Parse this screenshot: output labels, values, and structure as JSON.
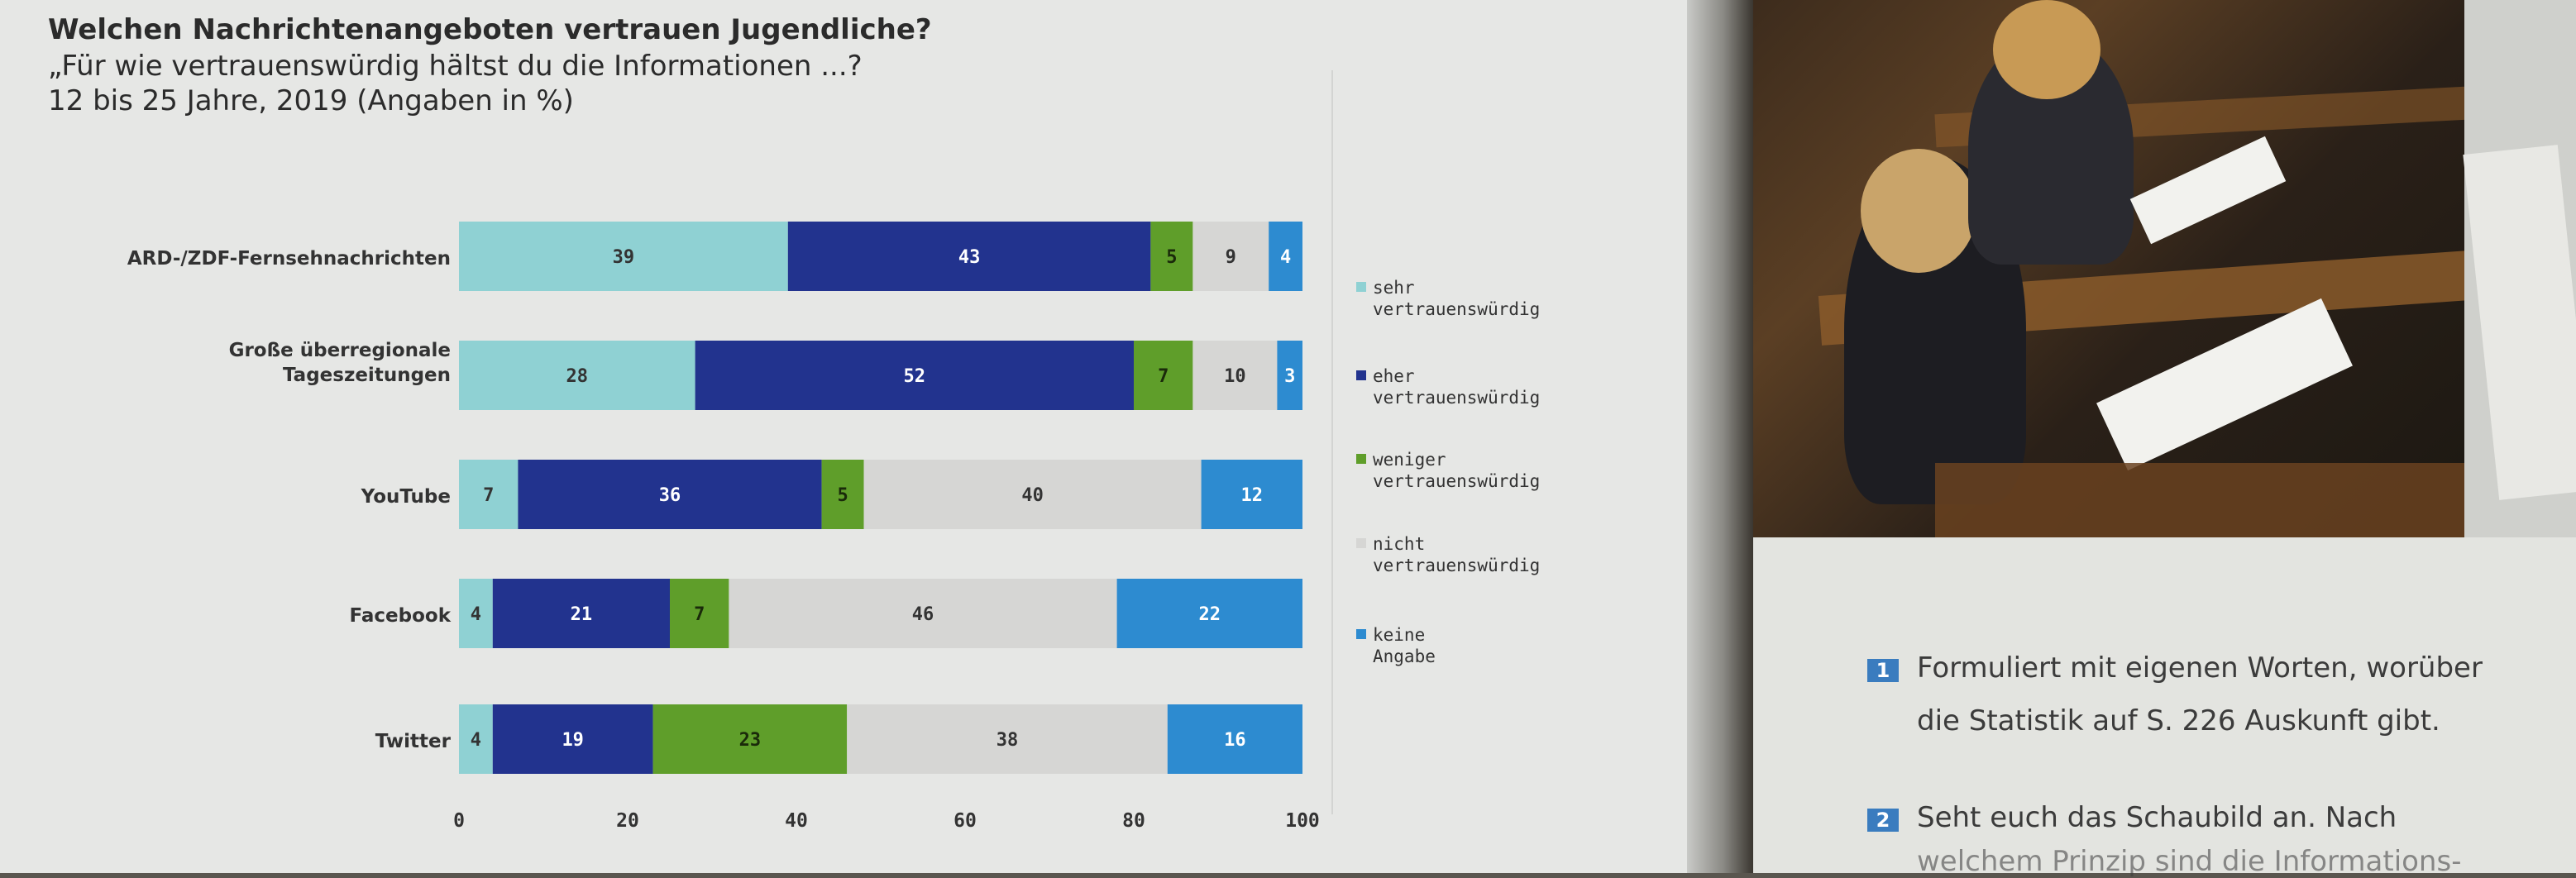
{
  "chart_data": {
    "type": "bar",
    "stacked": true,
    "orientation": "horizontal",
    "title": "Welchen Nachrichtenangeboten vertrauen Jugendliche?",
    "subtitle": "„Für wie vertrauenswürdig hältst du die Informationen ...?",
    "note": "12 bis 25 Jahre, 2019 (Angaben in %)",
    "categories": [
      "ARD-/ZDF-Fernsehnachrichten",
      "Große überregionale Tageszeitungen",
      "YouTube",
      "Facebook",
      "Twitter"
    ],
    "series": [
      {
        "name": "sehr vertrauenswürdig",
        "color": "#8fd1d3",
        "values": [
          39,
          28,
          7,
          4,
          4
        ]
      },
      {
        "name": "eher vertrauenswürdig",
        "color": "#22338e",
        "values": [
          43,
          52,
          36,
          21,
          19
        ]
      },
      {
        "name": "weniger vertrauenswürdig",
        "color": "#5f9e2a",
        "values": [
          5,
          7,
          5,
          7,
          23
        ]
      },
      {
        "name": "nicht vertrauenswürdig",
        "color": "#d6d6d4",
        "values": [
          9,
          10,
          40,
          46,
          38
        ]
      },
      {
        "name": "keine Angabe",
        "color": "#2d8bd0",
        "values": [
          4,
          3,
          12,
          22,
          16
        ]
      }
    ],
    "xlim": [
      0,
      100
    ],
    "xticks": [
      0,
      20,
      40,
      60,
      80,
      100
    ],
    "legend": "right"
  },
  "tasks": [
    {
      "num": "1",
      "line1": "Formuliert mit eigenen Worten, worüber",
      "line2": "die Statistik auf S. 226 Auskunft gibt."
    },
    {
      "num": "2",
      "line1": "Seht euch das Schaubild an. Nach",
      "line2": "welchem Prinzip sind die Informations-"
    }
  ],
  "colors": {
    "page": "#e6e7e5",
    "text": "#2b2b2b",
    "task_badge": "#3a7cbf"
  }
}
